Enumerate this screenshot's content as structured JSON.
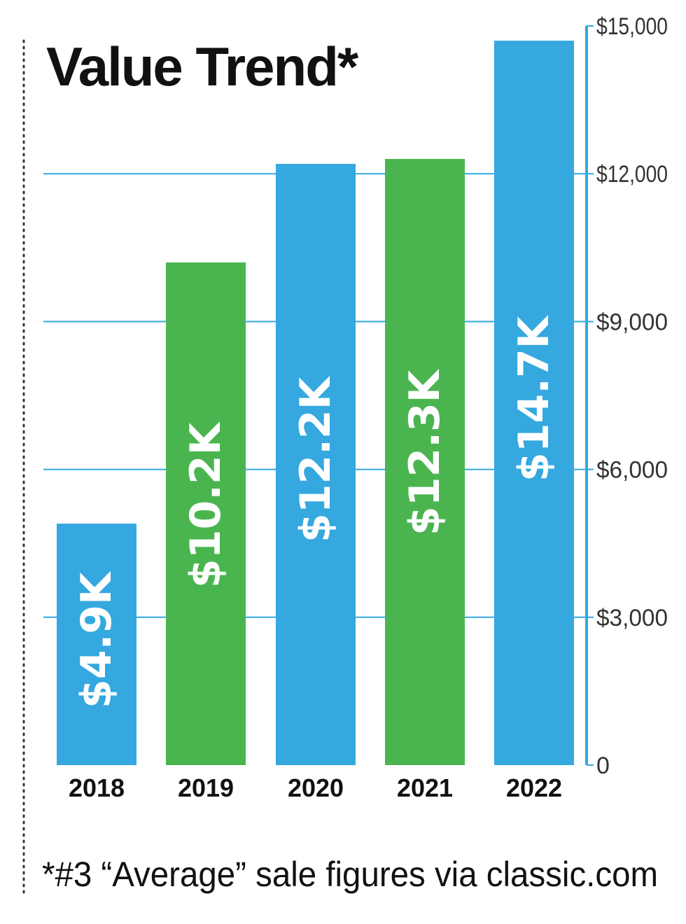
{
  "title": "Value Trend*",
  "footnote": "*#3 “Average” sale figures via classic.com",
  "colors": {
    "blue": "#34a8df",
    "green": "#4ab54f",
    "axis": "#34a8df",
    "text": "#111111",
    "tick_text": "#333333",
    "dotted_rule": "#333333"
  },
  "chart_data": {
    "type": "bar",
    "title": "Value Trend*",
    "categories": [
      "2018",
      "2019",
      "2020",
      "2021",
      "2022"
    ],
    "values": [
      4900,
      10200,
      12200,
      12300,
      14700
    ],
    "data_labels": [
      "$4.9K",
      "$10.2K",
      "$12.2K",
      "$12.3K",
      "$14.7K"
    ],
    "bar_colors": [
      "#34a8df",
      "#4ab54f",
      "#34a8df",
      "#4ab54f",
      "#34a8df"
    ],
    "ylim": [
      0,
      15000
    ],
    "yticks": [
      0,
      3000,
      6000,
      9000,
      12000,
      15000
    ],
    "ytick_labels": [
      "0",
      "$3,000",
      "$6,000",
      "$9,000",
      "$12,000",
      "$15,000"
    ],
    "y_axis_position": "right",
    "gridlines": true,
    "xlabel": "",
    "ylabel": ""
  }
}
